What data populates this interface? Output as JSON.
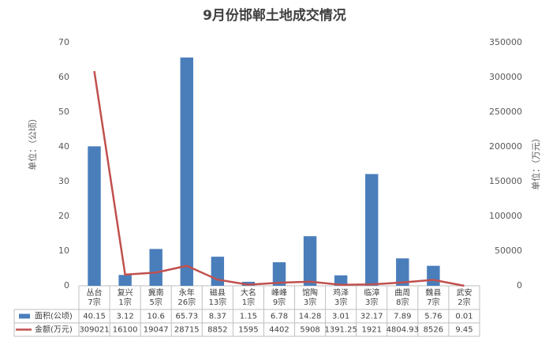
{
  "chart_data": {
    "type": "bar-line",
    "title": "9月份邯郸土地成交情况",
    "ylabel": "单位：（公顷）",
    "y2label": "单位：（万元）",
    "categories": [
      [
        "丛台",
        "7宗"
      ],
      [
        "复兴",
        "1宗"
      ],
      [
        "冀南",
        "5宗"
      ],
      [
        "永年",
        "26宗"
      ],
      [
        "磁县",
        "13宗"
      ],
      [
        "大名",
        "1宗"
      ],
      [
        "峰峰",
        "9宗"
      ],
      [
        "馆陶",
        "3宗"
      ],
      [
        "鸡泽",
        "3宗"
      ],
      [
        "临漳",
        "3宗"
      ],
      [
        "曲周",
        "8宗"
      ],
      [
        "魏县",
        "7宗"
      ],
      [
        "武安",
        "2宗"
      ]
    ],
    "series": [
      {
        "name": "面积(公顷)",
        "type": "bar",
        "color": "#4a7ebb",
        "values": [
          40.15,
          3.12,
          10.6,
          65.73,
          8.37,
          1.15,
          6.78,
          14.28,
          3.01,
          32.17,
          7.89,
          5.76,
          0.01
        ]
      },
      {
        "name": "金额(万元)",
        "type": "line",
        "axis": "y2",
        "color": "#c0504d",
        "values": [
          309021,
          16100,
          19047,
          28715,
          8852,
          1595,
          4402,
          5908,
          1391.25,
          1921,
          4804.93,
          8526,
          9.45
        ]
      }
    ],
    "ylim": [
      0,
      70
    ],
    "yticks": [
      0,
      10,
      20,
      30,
      40,
      50,
      60,
      70
    ],
    "y2lim": [
      0,
      350000
    ],
    "y2ticks": [
      0,
      50000,
      100000,
      150000,
      200000,
      250000,
      300000,
      350000
    ],
    "grid": false
  }
}
